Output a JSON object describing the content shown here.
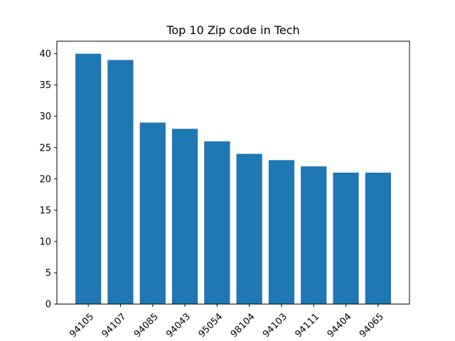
{
  "chart_data": {
    "type": "bar",
    "title": "Top 10 Zip code in Tech",
    "xlabel": "",
    "ylabel": "",
    "categories": [
      "94105",
      "94107",
      "94085",
      "94043",
      "95054",
      "98104",
      "94103",
      "94111",
      "94404",
      "94065"
    ],
    "values": [
      40,
      39,
      29,
      28,
      26,
      24,
      23,
      22,
      21,
      21
    ],
    "ylim": [
      0,
      42
    ],
    "yticks": [
      0,
      5,
      10,
      15,
      20,
      25,
      30,
      35,
      40
    ],
    "x_tick_rotation_degrees": 45,
    "grid": false,
    "legend": "none",
    "colors": {
      "bar": "#1f77b4",
      "axis": "#000000",
      "background": "#ffffff"
    }
  }
}
